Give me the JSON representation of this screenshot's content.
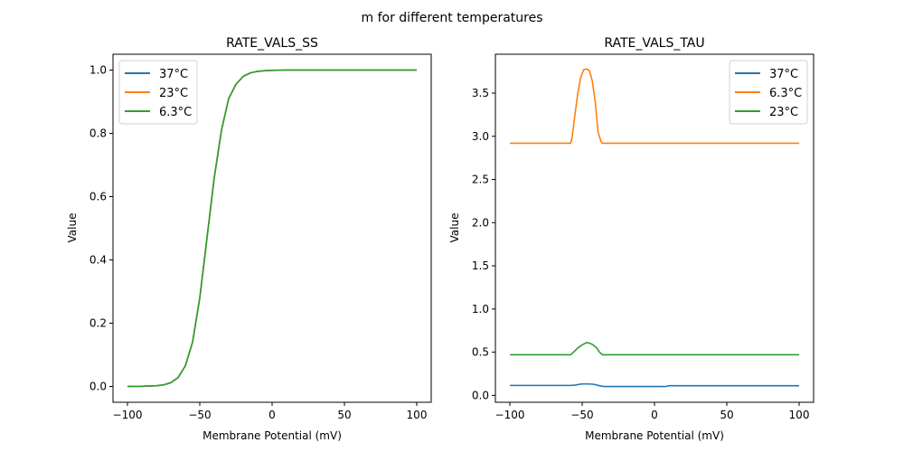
{
  "figure": {
    "suptitle": "m for different temperatures"
  },
  "chart_data": [
    {
      "type": "line",
      "title": "RATE_VALS_SS",
      "xlabel": "Membrane Potential (mV)",
      "ylabel": "Value",
      "xlim": [
        -110,
        110
      ],
      "ylim": [
        -0.05,
        1.05
      ],
      "xticks": [
        -100,
        -50,
        0,
        50,
        100
      ],
      "xtick_labels": [
        "−100",
        "−50",
        "0",
        "50",
        "100"
      ],
      "yticks": [
        0.0,
        0.2,
        0.4,
        0.6,
        0.8,
        1.0
      ],
      "ytick_labels": [
        "0.0",
        "0.2",
        "0.4",
        "0.6",
        "0.8",
        "1.0"
      ],
      "grid": false,
      "legend_position": "top-left",
      "series": [
        {
          "name": "37°C",
          "color": "#1f77b4",
          "x": [
            -100,
            -90,
            -80,
            -75,
            -70,
            -65,
            -60,
            -55,
            -50,
            -45,
            -40,
            -35,
            -30,
            -25,
            -20,
            -15,
            -10,
            -5,
            0,
            10,
            20,
            40,
            60,
            80,
            100
          ],
          "y": [
            0.0001,
            0.0004,
            0.0022,
            0.005,
            0.012,
            0.028,
            0.065,
            0.14,
            0.28,
            0.47,
            0.66,
            0.81,
            0.91,
            0.955,
            0.98,
            0.991,
            0.996,
            0.998,
            0.999,
            1.0,
            1.0,
            1.0,
            1.0,
            1.0,
            1.0
          ]
        },
        {
          "name": "23°C",
          "color": "#ff7f0e",
          "x": [
            -100,
            -90,
            -80,
            -75,
            -70,
            -65,
            -60,
            -55,
            -50,
            -45,
            -40,
            -35,
            -30,
            -25,
            -20,
            -15,
            -10,
            -5,
            0,
            10,
            20,
            40,
            60,
            80,
            100
          ],
          "y": [
            0.0001,
            0.0004,
            0.0022,
            0.005,
            0.012,
            0.028,
            0.065,
            0.14,
            0.28,
            0.47,
            0.66,
            0.81,
            0.91,
            0.955,
            0.98,
            0.991,
            0.996,
            0.998,
            0.999,
            1.0,
            1.0,
            1.0,
            1.0,
            1.0,
            1.0
          ]
        },
        {
          "name": "6.3°C",
          "color": "#2ca02c",
          "x": [
            -100,
            -90,
            -80,
            -75,
            -70,
            -65,
            -60,
            -55,
            -50,
            -45,
            -40,
            -35,
            -30,
            -25,
            -20,
            -15,
            -10,
            -5,
            0,
            10,
            20,
            40,
            60,
            80,
            100
          ],
          "y": [
            0.0001,
            0.0004,
            0.0022,
            0.005,
            0.012,
            0.028,
            0.065,
            0.14,
            0.28,
            0.47,
            0.66,
            0.81,
            0.91,
            0.955,
            0.98,
            0.991,
            0.996,
            0.998,
            0.999,
            1.0,
            1.0,
            1.0,
            1.0,
            1.0,
            1.0
          ]
        }
      ]
    },
    {
      "type": "line",
      "title": "RATE_VALS_TAU",
      "xlabel": "Membrane Potential (mV)",
      "ylabel": "Value",
      "xlim": [
        -110,
        110
      ],
      "ylim": [
        -0.08,
        3.95
      ],
      "xticks": [
        -100,
        -50,
        0,
        50,
        100
      ],
      "xtick_labels": [
        "−100",
        "−50",
        "0",
        "50",
        "100"
      ],
      "yticks": [
        0.0,
        0.5,
        1.0,
        1.5,
        2.0,
        2.5,
        3.0,
        3.5
      ],
      "ytick_labels": [
        "0.0",
        "0.5",
        "1.0",
        "1.5",
        "2.0",
        "2.5",
        "3.0",
        "3.5"
      ],
      "grid": false,
      "legend_position": "top-right",
      "series": [
        {
          "name": "37°C",
          "color": "#1f77b4",
          "x": [
            -100,
            -58,
            -55,
            -52,
            -50,
            -45,
            -42,
            -40,
            -37,
            -35,
            -30,
            0,
            8,
            10,
            100
          ],
          "y": [
            0.115,
            0.115,
            0.118,
            0.128,
            0.132,
            0.132,
            0.128,
            0.12,
            0.108,
            0.103,
            0.103,
            0.103,
            0.103,
            0.112,
            0.112
          ]
        },
        {
          "name": "6.3°C",
          "color": "#ff7f0e",
          "x": [
            -100,
            -58,
            -57,
            -55,
            -53,
            -51,
            -49,
            -47,
            -45,
            -43,
            -41,
            -39,
            -37,
            -36,
            -34,
            100
          ],
          "y": [
            2.92,
            2.92,
            2.98,
            3.25,
            3.5,
            3.68,
            3.77,
            3.78,
            3.76,
            3.64,
            3.4,
            3.05,
            2.94,
            2.92,
            2.92,
            2.92
          ]
        },
        {
          "name": "23°C",
          "color": "#2ca02c",
          "x": [
            -100,
            -58,
            -56,
            -53,
            -50,
            -47,
            -45,
            -43,
            -40,
            -38,
            -36,
            -35,
            100
          ],
          "y": [
            0.47,
            0.47,
            0.5,
            0.55,
            0.585,
            0.61,
            0.605,
            0.59,
            0.55,
            0.5,
            0.47,
            0.47,
            0.47
          ]
        }
      ]
    }
  ]
}
